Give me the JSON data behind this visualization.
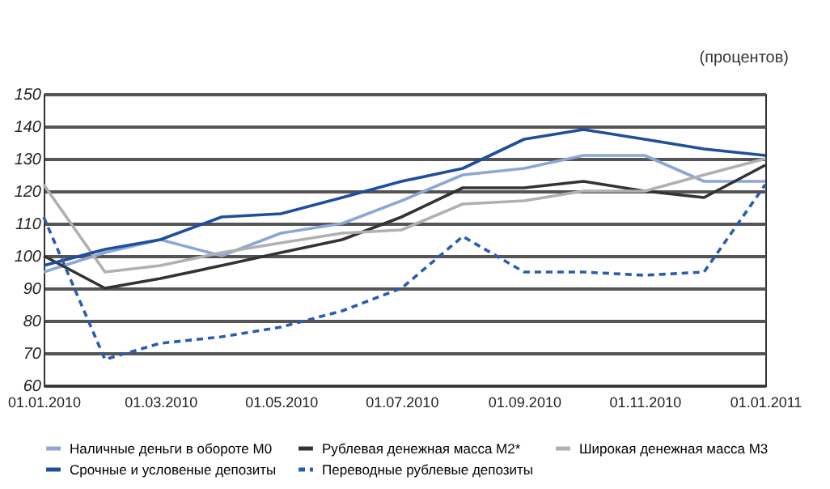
{
  "chart_data": {
    "type": "line",
    "ylabel": "(процентов)",
    "x": [
      "2010-01-01",
      "2010-02-01",
      "2010-03-01",
      "2010-04-01",
      "2010-05-01",
      "2010-06-01",
      "2010-07-01",
      "2010-08-01",
      "2010-09-01",
      "2010-10-01",
      "2010-11-01",
      "2010-12-01",
      "2011-01-01"
    ],
    "xlim": [
      "2010-01-01",
      "2011-01-01"
    ],
    "xticks": [
      {
        "value": "2010-01-01",
        "label": "01.01.2010"
      },
      {
        "value": "2010-03-01",
        "label": "01.03.2010"
      },
      {
        "value": "2010-05-01",
        "label": "01.05.2010"
      },
      {
        "value": "2010-07-01",
        "label": "01.07.2010"
      },
      {
        "value": "2010-09-01",
        "label": "01.09.2010"
      },
      {
        "value": "2010-11-01",
        "label": "01.11.2010"
      },
      {
        "value": "2011-01-01",
        "label": "01.01.2011"
      }
    ],
    "ylim": [
      60,
      150
    ],
    "yticks": [
      60,
      70,
      80,
      90,
      100,
      110,
      120,
      130,
      140,
      150
    ],
    "grid": "y",
    "legend": "bottom",
    "marker": "none",
    "series": [
      {
        "name": "Наличные деньги в обороте М0",
        "color": "#8da6d6",
        "line_style": "solid",
        "values": [
          95,
          101,
          105,
          100,
          107,
          110,
          117,
          125,
          127,
          131,
          131,
          123,
          123
        ]
      },
      {
        "name": "Рублевая денежная масса М2*",
        "color": "#333333",
        "line_style": "solid",
        "values": [
          100,
          90,
          93,
          97,
          101,
          105,
          112,
          121,
          121,
          123,
          120,
          118,
          128
        ]
      },
      {
        "name": "Широкая денежная масса М3",
        "color": "#b0b0b0",
        "line_style": "solid",
        "values": [
          122,
          95,
          97,
          101,
          104,
          107,
          108,
          116,
          117,
          120,
          120,
          125,
          130
        ]
      },
      {
        "name": "Срочные и условеные депозиты",
        "color": "#1f4e9c",
        "line_style": "solid",
        "values": [
          97,
          102,
          105,
          112,
          113,
          118,
          123,
          127,
          136,
          139,
          136,
          133,
          131
        ]
      },
      {
        "name": "Переводные рублевые депозиты",
        "color": "#2a5cb0",
        "line_style": "dashed",
        "values": [
          112,
          68,
          73,
          75,
          78,
          83,
          90,
          106,
          95,
          95,
          94,
          95,
          122
        ]
      }
    ]
  }
}
